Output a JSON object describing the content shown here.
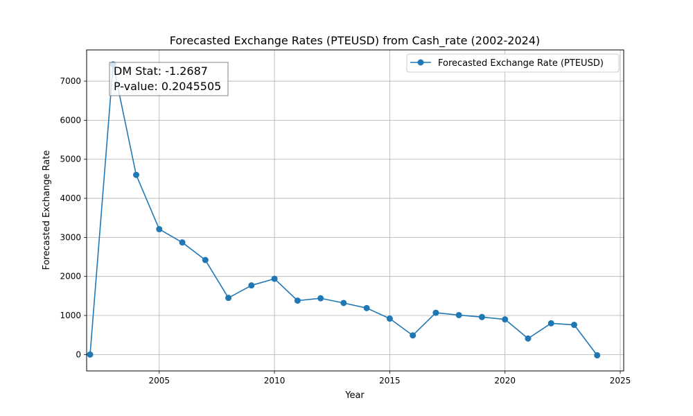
{
  "chart_data": {
    "type": "line",
    "title": "Forecasted Exchange Rates (PTEUSD) from Cash_rate (2002-2024)",
    "xlabel": "Year",
    "ylabel": "Forecasted Exchange Rate",
    "xlim": [
      2001.85,
      2025.15
    ],
    "ylim": [
      -420,
      7800
    ],
    "xticks": [
      2005,
      2010,
      2015,
      2020,
      2025
    ],
    "xtick_labels": [
      "2005",
      "2010",
      "2015",
      "2020",
      "2025"
    ],
    "yticks": [
      0,
      1000,
      2000,
      3000,
      4000,
      5000,
      6000,
      7000
    ],
    "ytick_labels": [
      "0",
      "1000",
      "2000",
      "3000",
      "4000",
      "5000",
      "6000",
      "7000"
    ],
    "grid": true,
    "legend_position": "top-right",
    "series": [
      {
        "name": "Forecasted Exchange Rate (PTEUSD)",
        "color": "#1f77b4",
        "marker": "circle",
        "x": [
          2002,
          2003,
          2004,
          2005,
          2006,
          2007,
          2008,
          2009,
          2010,
          2011,
          2012,
          2013,
          2014,
          2015,
          2016,
          2017,
          2018,
          2019,
          2020,
          2021,
          2022,
          2023,
          2024
        ],
        "y": [
          0,
          7430,
          4600,
          3210,
          2870,
          2420,
          1450,
          1770,
          1940,
          1380,
          1440,
          1320,
          1190,
          920,
          490,
          1070,
          1010,
          960,
          900,
          410,
          800,
          760,
          -20
        ]
      }
    ],
    "annotations": [
      "DM Stat: -1.2687",
      "P-value: 0.2045505"
    ]
  }
}
